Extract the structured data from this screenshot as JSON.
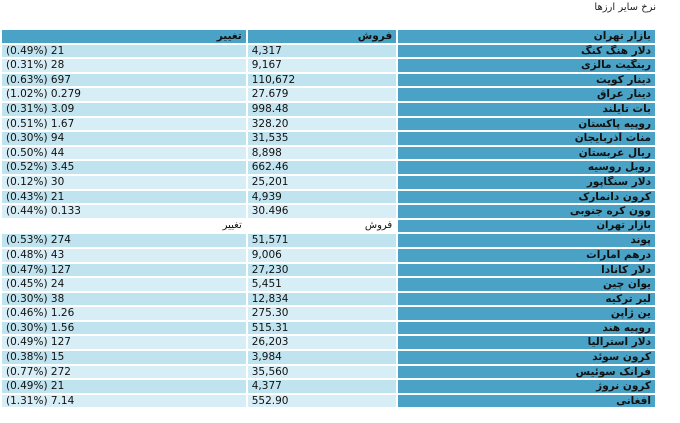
{
  "page": {
    "title": "نرخ سایر ارزها"
  },
  "table": {
    "header": {
      "change": "تغيير",
      "sell": "فروش",
      "name": "بازار تهران"
    },
    "rows_top": [
      {
        "name": "دلار هنگ کنگ",
        "sell": "4,317",
        "change": "(0.49%) 21"
      },
      {
        "name": "رينگيت مالزی",
        "sell": "9,167",
        "change": "(0.31%) 28"
      },
      {
        "name": "دينار کويت",
        "sell": "110,672",
        "change": "(0.63%) 697"
      },
      {
        "name": "دينار عراق",
        "sell": "27.679",
        "change": "(1.02%) 0.279"
      },
      {
        "name": "بات تايلند",
        "sell": "998.48",
        "change": "(0.31%) 3.09"
      },
      {
        "name": "روپيه پاکستان",
        "sell": "328.20",
        "change": "(0.51%) 1.67"
      },
      {
        "name": "منات آذربايجان",
        "sell": "31,535",
        "change": "(0.30%) 94"
      },
      {
        "name": "ريال عربستان",
        "sell": "8,898",
        "change": "(0.50%) 44"
      },
      {
        "name": "روبل روسيه",
        "sell": "662.46",
        "change": "(0.52%) 3.45"
      },
      {
        "name": "دلار سنگاپور",
        "sell": "25,201",
        "change": "(0.12%) 30"
      },
      {
        "name": "کرون دانمارک",
        "sell": "4,939",
        "change": "(0.43%) 21"
      },
      {
        "name": "وون کره جنوبی",
        "sell": "30.496",
        "change": "(0.44%) 0.133"
      }
    ],
    "subheader": {
      "change": "تغيير",
      "sell": "فروش",
      "name": "بازار تهران"
    },
    "rows_bottom": [
      {
        "name": "پوند",
        "sell": "51,571",
        "change": "(0.53%) 274"
      },
      {
        "name": "درهم امارات",
        "sell": "9,006",
        "change": "(0.48%) 43"
      },
      {
        "name": "دلار کانادا",
        "sell": "27,230",
        "change": "(0.47%) 127"
      },
      {
        "name": "يوان چين",
        "sell": "5,451",
        "change": "(0.45%) 24"
      },
      {
        "name": "لير ترکيه",
        "sell": "12,834",
        "change": "(0.30%) 38"
      },
      {
        "name": "ين ژاپن",
        "sell": "275.30",
        "change": "(0.46%) 1.26"
      },
      {
        "name": "روپيه هند",
        "sell": "515.31",
        "change": "(0.30%) 1.56"
      },
      {
        "name": "دلار استراليا",
        "sell": "26,203",
        "change": "(0.49%) 127"
      },
      {
        "name": "کرون سوئد",
        "sell": "3,984",
        "change": "(0.38%) 15"
      },
      {
        "name": "فرانک سوئيس",
        "sell": "35,560",
        "change": "(0.77%) 272"
      },
      {
        "name": "کرون نروژ",
        "sell": "4,377",
        "change": "(0.49%) 21"
      },
      {
        "name": "افغانی",
        "sell": "552.90",
        "change": "(1.31%) 7.14"
      }
    ]
  },
  "colors": {
    "header_bg": "#4aa3c6",
    "row_bg": "#bfe3ef",
    "row_alt_bg": "#d8eef6"
  }
}
